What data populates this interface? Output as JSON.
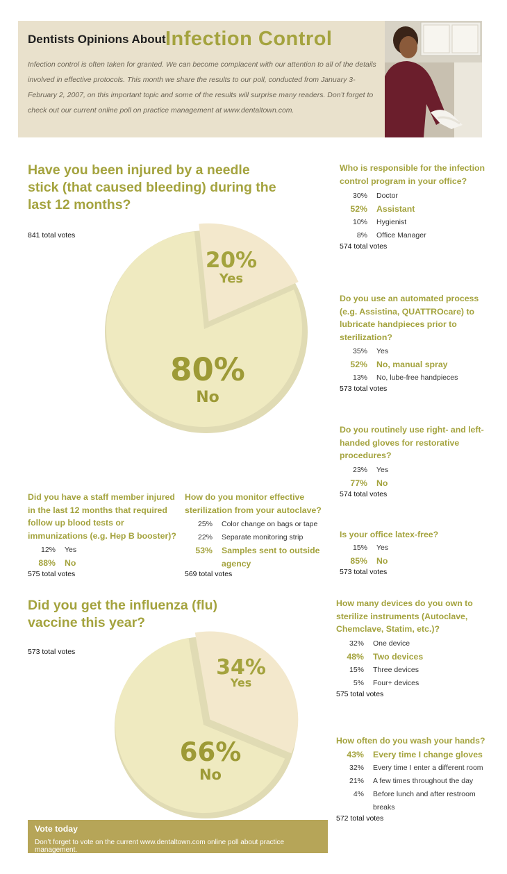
{
  "header": {
    "title_small": "Dentists Opinions About",
    "title_big": "Infection Control",
    "intro": "Infection control is often taken for granted. We can become complacent with our attention to all of the details involved in effective protocols. This month we share the results to our poll, conducted from January 3-February 2, 2007, on this important topic and some of the results will surprise many readers. Don’t forget to check out our current online poll on practice management at www.dentaltown.com."
  },
  "q_needle": {
    "question": "Have you been injured by a needle stick (that caused bleeding) during the last 12 months?",
    "votes": "841 total votes",
    "slices": [
      {
        "pct": "20%",
        "label": "Yes",
        "value": 20
      },
      {
        "pct": "80%",
        "label": "No",
        "value": 80
      }
    ]
  },
  "q_responsible": {
    "question": "Who is responsible for the infection control program in your office?",
    "answers": [
      {
        "pct": "30%",
        "label": "Doctor"
      },
      {
        "pct": "52%",
        "label": "Assistant"
      },
      {
        "pct": "10%",
        "label": "Hygienist"
      },
      {
        "pct": "8%",
        "label": "Office Manager"
      }
    ],
    "votes": "574 total votes"
  },
  "q_automated": {
    "question": "Do you use an automated process (e.g. Assistina, QUATTROcare) to lubricate handpieces prior to sterilization?",
    "answers": [
      {
        "pct": "35%",
        "label": "Yes"
      },
      {
        "pct": "52%",
        "label": "No, manual spray"
      },
      {
        "pct": "13%",
        "label": "No, lube-free handpieces"
      }
    ],
    "votes": "573 total votes"
  },
  "q_gloves": {
    "question": "Do you routinely use right- and left-handed gloves for restorative procedures?",
    "answers": [
      {
        "pct": "23%",
        "label": "Yes"
      },
      {
        "pct": "77%",
        "label": "No"
      }
    ],
    "votes": "574 total votes"
  },
  "q_staff": {
    "question": "Did you have a staff member injured in the last 12 months that required follow up blood tests or immunizations (e.g. Hep B booster)?",
    "answers": [
      {
        "pct": "12%",
        "label": "Yes"
      },
      {
        "pct": "88%",
        "label": "No"
      }
    ],
    "votes": "575 total votes"
  },
  "q_monitor": {
    "question": "How do you monitor effective sterilization from your autoclave?",
    "answers": [
      {
        "pct": "25%",
        "label": "Color change on bags or tape"
      },
      {
        "pct": "22%",
        "label": "Separate monitoring strip"
      },
      {
        "pct": "53%",
        "label": "Samples sent to outside agency"
      }
    ],
    "votes": "569 total votes"
  },
  "q_latex": {
    "question": "Is your office latex-free?",
    "answers": [
      {
        "pct": "15%",
        "label": "Yes"
      },
      {
        "pct": "85%",
        "label": "No"
      }
    ],
    "votes": "573 total votes"
  },
  "q_flu": {
    "question": "Did you get the influenza (flu) vaccine this year?",
    "votes": "573 total votes",
    "slices": [
      {
        "pct": "34%",
        "label": "Yes",
        "value": 34
      },
      {
        "pct": "66%",
        "label": "No",
        "value": 66
      }
    ]
  },
  "q_devices": {
    "question": "How many devices do you own to sterilize instruments (Autoclave, Chemclave, Statim, etc.)?",
    "answers": [
      {
        "pct": "32%",
        "label": "One device"
      },
      {
        "pct": "48%",
        "label": "Two devices"
      },
      {
        "pct": "15%",
        "label": "Three devices"
      },
      {
        "pct": "5%",
        "label": "Four+ devices"
      }
    ],
    "votes": "575 total votes"
  },
  "q_wash": {
    "question": "How often do you wash your hands?",
    "answers": [
      {
        "pct": "43%",
        "label": "Every time I change gloves"
      },
      {
        "pct": "32%",
        "label": "Every time I enter a different room"
      },
      {
        "pct": "21%",
        "label": "A few times throughout the day"
      },
      {
        "pct": "4%",
        "label": "Before lunch and after restroom breaks"
      }
    ],
    "votes": "572 total votes"
  },
  "vote_box": {
    "title": "Vote today",
    "text": "Don’t forget to vote on the current www.dentaltown.com online poll about practice management."
  },
  "colors": {
    "accent": "#a4a33e",
    "banner": "#e9e1cc",
    "pie_large": "#efeac0",
    "pie_small": "#f3e8cc",
    "vote_box": "#b6a558"
  }
}
